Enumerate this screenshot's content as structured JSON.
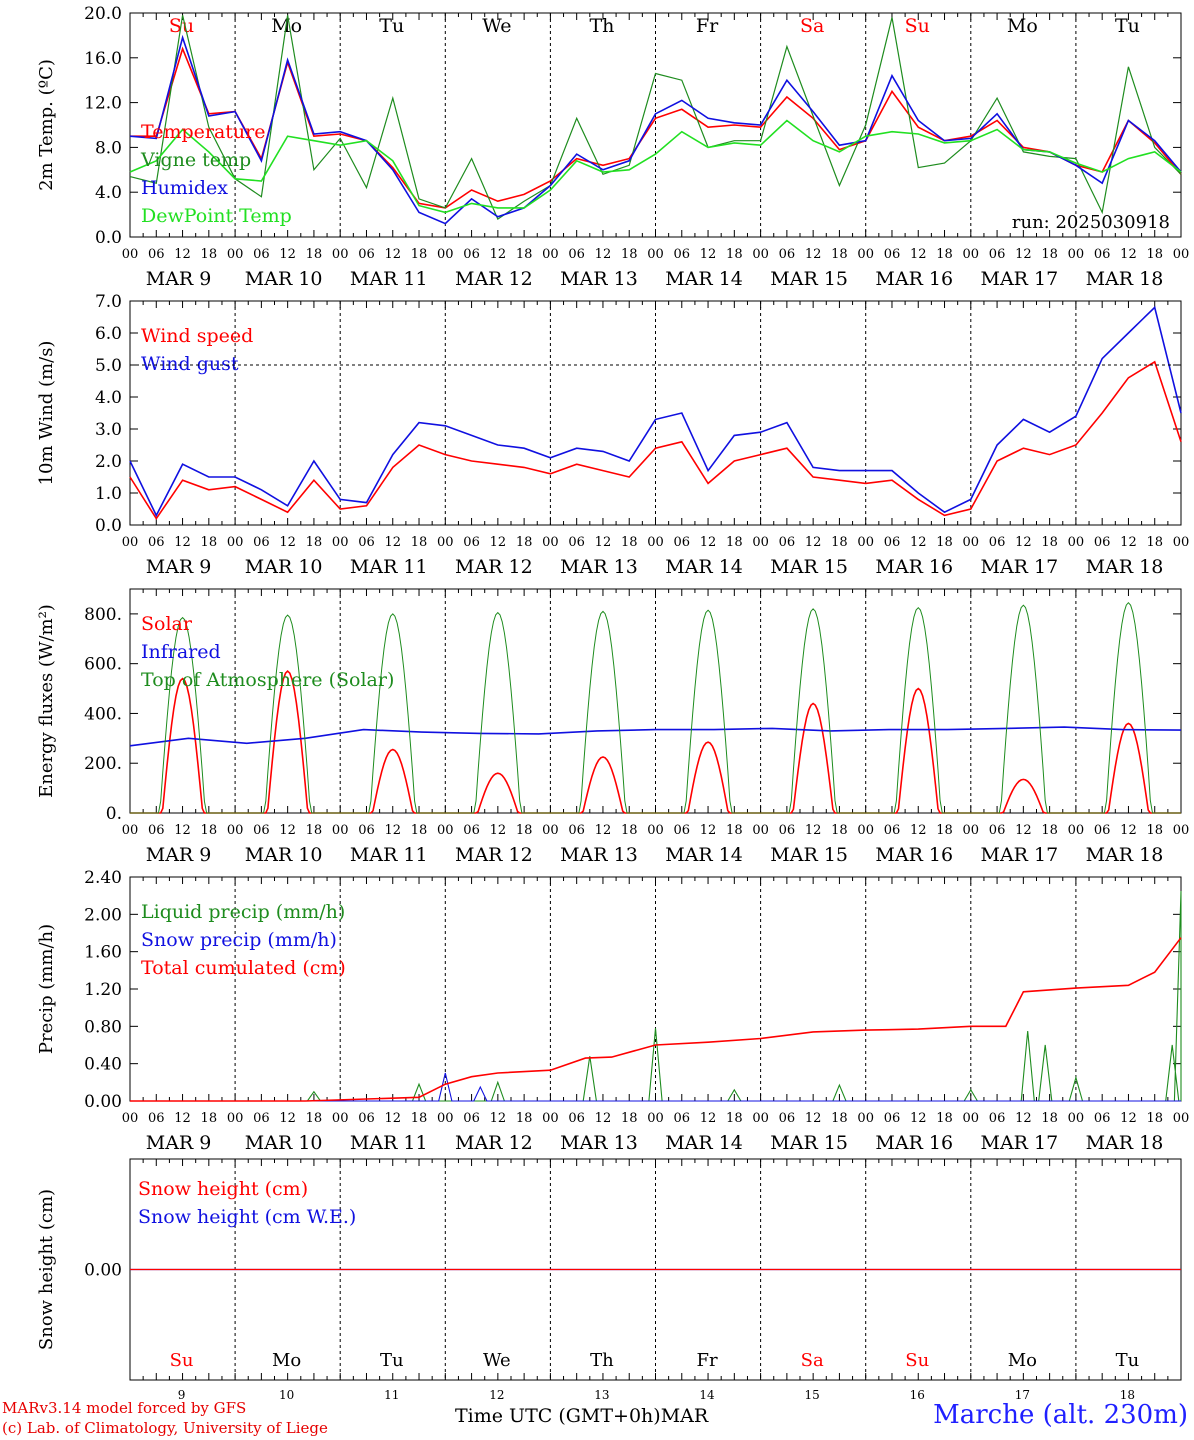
{
  "colors": {
    "red": "#ff0000",
    "green": "#1e8c1e",
    "blue": "#1010e0",
    "light_green": "#22e022",
    "axis": "#000000"
  },
  "run_label": "run: 2025030918",
  "footer": {
    "credit_line1": "MARv3.14 model forced by GFS",
    "credit_line2": "(c) Lab. of Climatology, University of Liege",
    "x_title": "Time UTC (GMT+0h)MAR",
    "station": "Marche (alt. 230m)"
  },
  "chart_data": [
    {
      "type": "line",
      "panel": "temperature",
      "ylabel": "2m Temp. (ºC)",
      "ylim": [
        0,
        20
      ],
      "yticks": [
        "0.0",
        "4.0",
        "8.0",
        "12.0",
        "16.0",
        "20.0"
      ],
      "grid": "vertical day separators",
      "x_hours": [
        0,
        6,
        12,
        18,
        24,
        30,
        36,
        42,
        48,
        54,
        60,
        66,
        72,
        78,
        84,
        90,
        96,
        102,
        108,
        114,
        120,
        126,
        132,
        138,
        144,
        150,
        156,
        162,
        168,
        174,
        180,
        186,
        192,
        198,
        204,
        210,
        216,
        222,
        228,
        234,
        240
      ],
      "series": [
        {
          "name": "Temperature",
          "color": "red",
          "values": [
            9,
            9,
            16.8,
            11,
            11.2,
            7,
            15.6,
            9,
            9.2,
            8.6,
            6.2,
            3,
            2.6,
            4.2,
            3.2,
            3.8,
            5,
            7,
            6.4,
            7,
            10.6,
            11.4,
            9.8,
            10,
            9.8,
            12.5,
            10.6,
            7.8,
            8.6,
            13,
            9.8,
            8.6,
            9,
            10.4,
            8,
            7.6,
            6.4,
            5.8,
            10.4,
            8.4,
            5.6
          ]
        },
        {
          "name": "Vigne temp",
          "color": "green",
          "values": [
            5.4,
            4.8,
            19.8,
            9.8,
            5.2,
            3.6,
            19.8,
            6,
            8.8,
            4.4,
            12.4,
            3.4,
            2.6,
            7,
            1.6,
            3.2,
            4.6,
            10.6,
            5.6,
            6.4,
            14.6,
            14,
            8,
            8.6,
            8.6,
            17,
            10.8,
            4.6,
            10,
            19.6,
            6.2,
            6.6,
            8.6,
            12.4,
            7.6,
            7.2,
            7,
            2.2,
            15.2,
            8,
            5.6
          ]
        },
        {
          "name": "Humidex",
          "color": "blue",
          "values": [
            9,
            8.8,
            17.8,
            10.8,
            11.2,
            6.8,
            15.8,
            9.2,
            9.4,
            8.6,
            6,
            2.2,
            1.2,
            3.4,
            1.8,
            2.6,
            4.6,
            7.4,
            6,
            6.8,
            11,
            12.2,
            10.6,
            10.2,
            10,
            14,
            11.2,
            8.2,
            8.6,
            14.4,
            10.4,
            8.6,
            8.8,
            11,
            7.8,
            7.6,
            6.4,
            4.8,
            10.4,
            8.6,
            5.8
          ]
        },
        {
          "name": "DewPoint Temp",
          "color": "light_green",
          "values": [
            5.8,
            6.8,
            9.6,
            7.6,
            5.2,
            5,
            9,
            8.6,
            8.2,
            8.6,
            6.8,
            2.8,
            2.2,
            3,
            2.6,
            2.6,
            4.2,
            6.8,
            5.8,
            6,
            7.4,
            9.4,
            8,
            8.4,
            8.2,
            10.4,
            8.6,
            7.6,
            9,
            9.4,
            9.2,
            8.4,
            8.6,
            9.6,
            7.8,
            7.6,
            6.6,
            5.8,
            7,
            7.6,
            5.8
          ]
        }
      ]
    },
    {
      "type": "line",
      "panel": "wind",
      "ylabel": "10m Wind (m/s)",
      "ylim": [
        0,
        7
      ],
      "yticks": [
        "0.0",
        "1.0",
        "2.0",
        "3.0",
        "4.0",
        "5.0",
        "6.0",
        "7.0"
      ],
      "grid": "vertical day separators",
      "x_hours": [
        0,
        6,
        12,
        18,
        24,
        30,
        36,
        42,
        48,
        54,
        60,
        66,
        72,
        78,
        84,
        90,
        96,
        102,
        108,
        114,
        120,
        126,
        132,
        138,
        144,
        150,
        156,
        162,
        168,
        174,
        180,
        186,
        192,
        198,
        204,
        210,
        216,
        222,
        228,
        234,
        240
      ],
      "series": [
        {
          "name": "Wind speed",
          "color": "red",
          "values": [
            1.5,
            0.2,
            1.4,
            1.1,
            1.2,
            0.8,
            0.4,
            1.4,
            0.5,
            0.6,
            1.8,
            2.5,
            2.2,
            2,
            1.9,
            1.8,
            1.6,
            1.9,
            1.7,
            1.5,
            2.4,
            2.6,
            1.3,
            2,
            2.2,
            2.4,
            1.5,
            1.4,
            1.3,
            1.4,
            0.8,
            0.3,
            0.5,
            2,
            2.4,
            2.2,
            2.5,
            3.5,
            4.6,
            5.1,
            2.6
          ]
        },
        {
          "name": "Wind gust",
          "color": "blue",
          "values": [
            2,
            0.3,
            1.9,
            1.5,
            1.5,
            1.1,
            0.6,
            2,
            0.8,
            0.7,
            2.2,
            3.2,
            3.1,
            2.8,
            2.5,
            2.4,
            2.1,
            2.4,
            2.3,
            2,
            3.3,
            3.5,
            1.7,
            2.8,
            2.9,
            3.2,
            1.8,
            1.7,
            1.7,
            1.7,
            1,
            0.4,
            0.8,
            2.5,
            3.3,
            2.9,
            3.4,
            5.2,
            6,
            6.8,
            3.5
          ]
        }
      ]
    },
    {
      "type": "line",
      "panel": "energy",
      "ylabel": "Energy fluxes (W/m²)",
      "ylim": [
        0,
        900
      ],
      "yticks": [
        "0.",
        "200.",
        "400.",
        "600.",
        "800."
      ],
      "grid": "vertical day separators",
      "series": [
        {
          "name": "Solar",
          "color": "red",
          "daily_peak_wm2": [
            540,
            570,
            255,
            160,
            225,
            285,
            440,
            500,
            135,
            360
          ]
        },
        {
          "name": "Infrared",
          "color": "blue",
          "values": [
            270,
            300,
            280,
            300,
            335,
            325,
            320,
            318,
            330,
            335,
            335,
            340,
            330,
            335,
            335,
            340,
            345,
            335,
            333
          ]
        },
        {
          "name": "Top of Atmosphere (Solar)",
          "color": "green",
          "daily_peak_wm2": [
            785,
            795,
            800,
            805,
            810,
            815,
            820,
            825,
            835,
            845
          ]
        }
      ]
    },
    {
      "type": "line",
      "panel": "precip",
      "ylabel": "Precip (mm/h)",
      "ylim": [
        0,
        2.4
      ],
      "yticks": [
        "0.00",
        "0.40",
        "0.80",
        "1.20",
        "1.60",
        "2.00",
        "2.40"
      ],
      "grid": "vertical day separators",
      "series": [
        {
          "name": "Liquid precip (mm/h)",
          "color": "green",
          "peaks": [
            [
              42,
              0.1
            ],
            [
              66,
              0.18
            ],
            [
              84,
              0.2
            ],
            [
              105,
              0.48
            ],
            [
              120,
              0.78
            ],
            [
              138,
              0.12
            ],
            [
              162,
              0.17
            ],
            [
              192,
              0.12
            ],
            [
              205,
              0.75
            ],
            [
              209,
              0.6
            ],
            [
              216,
              0.25
            ],
            [
              238,
              0.6
            ],
            [
              240,
              2.25
            ]
          ]
        },
        {
          "name": "Snow precip (mm/h)",
          "color": "blue",
          "peaks": [
            [
              72,
              0.3
            ],
            [
              80,
              0.15
            ]
          ]
        },
        {
          "name": "Total cumulated (cm)",
          "color": "red",
          "x_hours": [
            0,
            40,
            66,
            72,
            78,
            84,
            96,
            104,
            110,
            120,
            132,
            144,
            156,
            168,
            180,
            192,
            200,
            204,
            216,
            228,
            234,
            240
          ],
          "values": [
            0,
            0,
            0.04,
            0.18,
            0.26,
            0.3,
            0.33,
            0.46,
            0.47,
            0.6,
            0.63,
            0.67,
            0.74,
            0.76,
            0.77,
            0.8,
            0.8,
            1.17,
            1.21,
            1.24,
            1.38,
            1.75
          ]
        }
      ]
    },
    {
      "type": "line",
      "panel": "snow",
      "ylabel": "Snow height (cm)",
      "ylim": [
        -1,
        1
      ],
      "yticks": [
        "0.00"
      ],
      "grid": "vertical day separators",
      "series": [
        {
          "name": "Snow height (cm)",
          "color": "red",
          "values": [
            0,
            0
          ]
        },
        {
          "name": "Snow height (cm W.E.)",
          "color": "blue",
          "values": [
            0,
            0
          ]
        }
      ]
    }
  ],
  "time_axis": {
    "hour_labels": [
      "00",
      "06",
      "12",
      "18"
    ],
    "final_label": "00",
    "dates": [
      "MAR  9",
      "MAR 10",
      "MAR 11",
      "MAR 12",
      "MAR 13",
      "MAR 14",
      "MAR 15",
      "MAR 16",
      "MAR 17",
      "MAR 18"
    ],
    "days": [
      "Su",
      "Mo",
      "Tu",
      "We",
      "Th",
      "Fr",
      "Sa",
      "Su",
      "Mo",
      "Tu"
    ],
    "day_colors": [
      "red",
      "black",
      "black",
      "black",
      "black",
      "black",
      "red",
      "red",
      "black",
      "black"
    ],
    "day_numbers": [
      "9",
      "10",
      "11",
      "12",
      "13",
      "14",
      "15",
      "16",
      "17",
      "18"
    ]
  }
}
